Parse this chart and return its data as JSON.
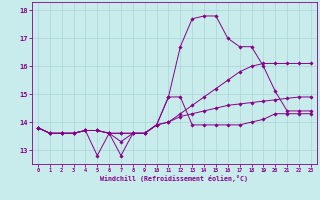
{
  "xlabel": "Windchill (Refroidissement éolien,°C)",
  "xlim": [
    -0.5,
    23.5
  ],
  "ylim": [
    12.5,
    18.3
  ],
  "yticks": [
    13,
    14,
    15,
    16,
    17,
    18
  ],
  "xticks": [
    0,
    1,
    2,
    3,
    4,
    5,
    6,
    7,
    8,
    9,
    10,
    11,
    12,
    13,
    14,
    15,
    16,
    17,
    18,
    19,
    20,
    21,
    22,
    23
  ],
  "bg_color": "#c8ecec",
  "line_color": "#880088",
  "grid_color": "#aad4d4",
  "series": [
    [
      13.8,
      13.6,
      13.6,
      13.6,
      13.7,
      13.7,
      13.6,
      13.3,
      13.6,
      13.6,
      13.9,
      14.9,
      14.9,
      13.9,
      13.9,
      13.9,
      13.9,
      13.9,
      14.0,
      14.1,
      14.3,
      14.3,
      14.3,
      14.3
    ],
    [
      13.8,
      13.6,
      13.6,
      13.6,
      13.7,
      12.8,
      13.6,
      12.8,
      13.6,
      13.6,
      13.9,
      14.9,
      16.7,
      17.7,
      17.8,
      17.8,
      17.0,
      16.7,
      16.7,
      16.0,
      15.1,
      14.4,
      14.4,
      14.4
    ],
    [
      13.8,
      13.6,
      13.6,
      13.6,
      13.7,
      13.7,
      13.6,
      13.6,
      13.6,
      13.6,
      13.9,
      14.0,
      14.3,
      14.6,
      14.9,
      15.2,
      15.5,
      15.8,
      16.0,
      16.1,
      16.1,
      16.1,
      16.1,
      16.1
    ],
    [
      13.8,
      13.6,
      13.6,
      13.6,
      13.7,
      13.7,
      13.6,
      13.6,
      13.6,
      13.6,
      13.9,
      14.0,
      14.2,
      14.3,
      14.4,
      14.5,
      14.6,
      14.65,
      14.7,
      14.75,
      14.8,
      14.85,
      14.9,
      14.9
    ]
  ]
}
